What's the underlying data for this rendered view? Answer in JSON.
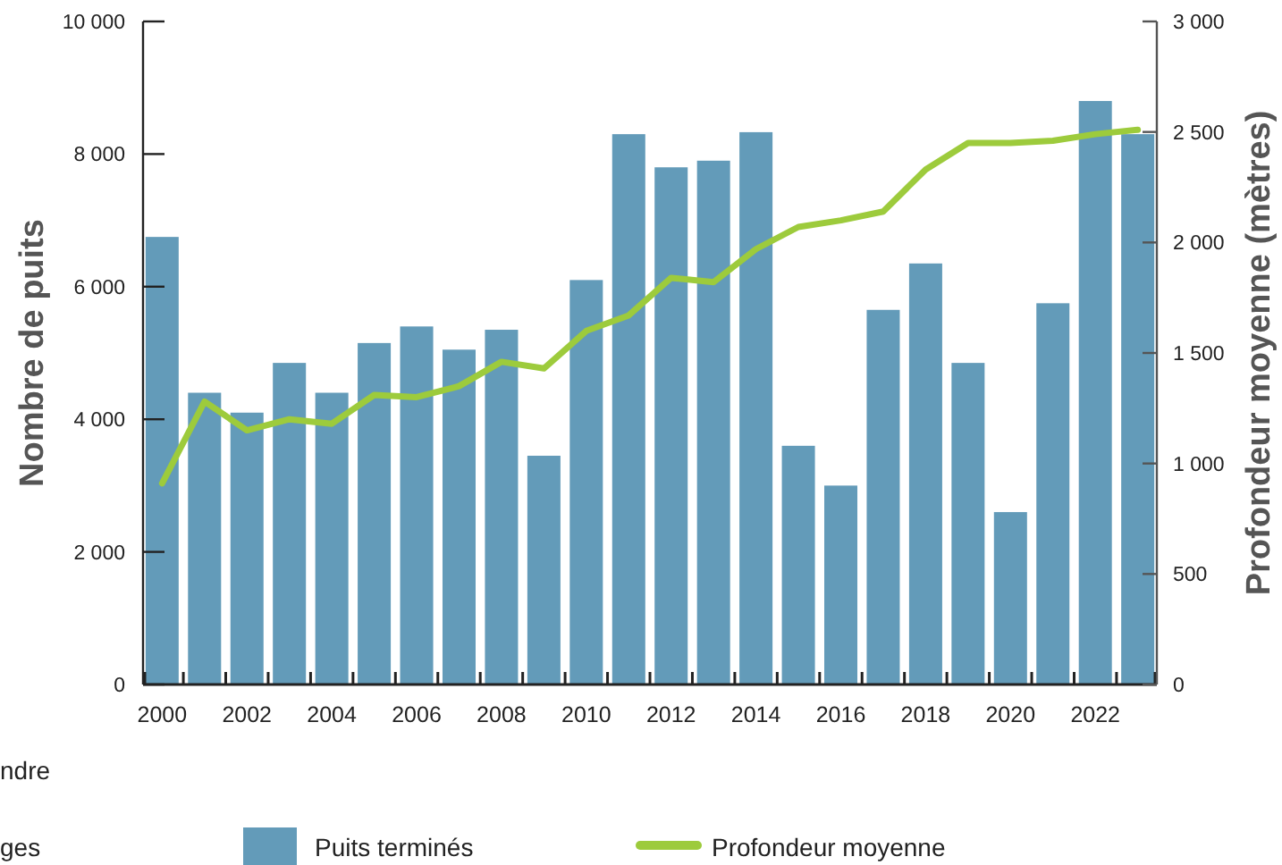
{
  "chart_data": {
    "type": "bar",
    "ylabel": "Nombre de puits",
    "y2label": "Profondeur moyenne (mètres)",
    "categories": [
      "2000",
      null,
      "2002",
      null,
      "2004",
      null,
      "2006",
      null,
      "2008",
      null,
      "2010",
      null,
      "2012",
      null,
      "2014",
      null,
      "2016",
      null,
      "2018",
      null,
      "2020",
      null,
      "2022",
      null
    ],
    "series": [
      {
        "name": "Puits terminés",
        "color": "#639bb9",
        "values": [
          6750,
          4400,
          4100,
          4850,
          4400,
          5150,
          5400,
          5050,
          5350,
          3450,
          6100,
          8300,
          7800,
          7900,
          8330,
          3600,
          3000,
          5650,
          6350,
          4850,
          2600,
          5750,
          8800,
          8300
        ]
      },
      {
        "name": "Profondeur moyenne",
        "type": "line",
        "axis": "y2",
        "color": "#9dcb3c",
        "values": [
          910,
          1280,
          1150,
          1200,
          1180,
          1310,
          1300,
          1350,
          1460,
          1430,
          1600,
          1670,
          1840,
          1820,
          1970,
          2070,
          2100,
          2140,
          2330,
          2450,
          2450,
          2460,
          2490,
          2510
        ]
      }
    ],
    "ylim": [
      0,
      10000
    ],
    "yticks": [
      0,
      {
        "value": 2000,
        "label": "2 000"
      },
      {
        "value": 4000,
        "label": "4 000"
      },
      {
        "value": 6000,
        "label": "6 000"
      },
      {
        "value": 8000,
        "label": "8 000"
      },
      {
        "value": 10000,
        "label": "10 000"
      }
    ],
    "y2lim": [
      0,
      3000
    ],
    "y2ticks": [
      0,
      500,
      {
        "value": 1000,
        "label": "1 000"
      },
      {
        "value": 1500,
        "label": "1 500"
      },
      {
        "value": 2000,
        "label": "2 000"
      },
      {
        "value": 2500,
        "label": "2 500"
      },
      {
        "value": 3000,
        "label": "3 000"
      }
    ],
    "legend": "bottom",
    "grid": false,
    "marker": "none",
    "line_style": "solid",
    "annotations": [
      "ndre",
      "ges"
    ]
  }
}
